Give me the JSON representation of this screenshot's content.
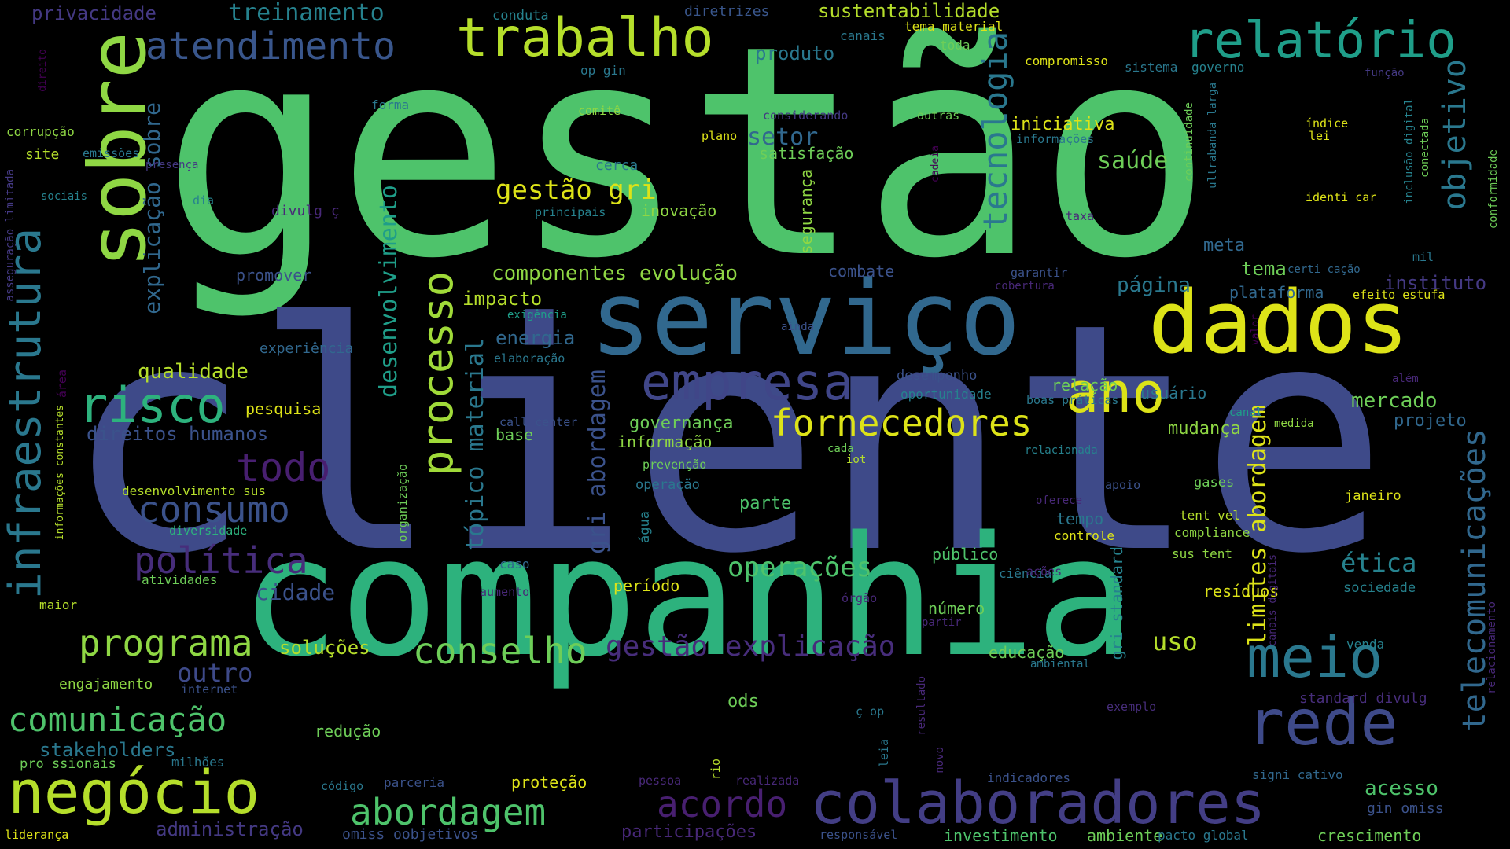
{
  "palette": [
    "#440154",
    "#482878",
    "#3e4a89",
    "#31688e",
    "#26828e",
    "#1f9e89",
    "#35b779",
    "#6ece58",
    "#b5de2b",
    "#fde725"
  ],
  "words": [
    {
      "t": "gestão",
      "c": "#4ec36b"
    },
    {
      "t": "cliente",
      "c": "#3e4a89"
    },
    {
      "t": "companhia",
      "c": "#2db27d"
    },
    {
      "t": "serviço",
      "c": "#31688e"
    },
    {
      "t": "dados",
      "c": "#dde318"
    },
    {
      "t": "sobre",
      "c": "#8fd744"
    },
    {
      "t": "trabalho",
      "c": "#b5de2b"
    },
    {
      "t": "relatório",
      "c": "#1f9e89"
    },
    {
      "t": "atendimento",
      "c": "#39568c"
    },
    {
      "t": "infraestrutura",
      "c": "#2a788e"
    },
    {
      "t": "negócio",
      "c": "#b5de2b"
    },
    {
      "t": "colaboradores",
      "c": "#433e85"
    },
    {
      "t": "rede",
      "c": "#3e4a89"
    },
    {
      "t": "meio",
      "c": "#2a788e"
    },
    {
      "t": "processo",
      "c": "#a0da39"
    },
    {
      "t": "ano",
      "c": "#dde318"
    },
    {
      "t": "empresa",
      "c": "#404688"
    },
    {
      "t": "risco",
      "c": "#2db27d"
    },
    {
      "t": "fornecedores",
      "c": "#dde318"
    },
    {
      "t": "tecnologia",
      "c": "#2a788e"
    },
    {
      "t": "telecomunicações",
      "c": "#31688e"
    },
    {
      "t": "objetivo",
      "c": "#2a788e"
    },
    {
      "t": "todo",
      "c": "#481f70"
    },
    {
      "t": "consumo",
      "c": "#3b528b"
    },
    {
      "t": "política",
      "c": "#472d7b"
    },
    {
      "t": "programa",
      "c": "#8fd744"
    },
    {
      "t": "comunicação",
      "c": "#4ec36b"
    },
    {
      "t": "conselho",
      "c": "#6ece58"
    },
    {
      "t": "gestão explicação",
      "c": "#472d7b"
    },
    {
      "t": "abordagem",
      "c": "#4ec36b"
    },
    {
      "t": "acordo",
      "c": "#481f70"
    },
    {
      "t": "operações",
      "c": "#4ec36b"
    },
    {
      "t": "tópico material",
      "c": "#2a788e"
    },
    {
      "t": "gri abordagem",
      "c": "#3b528b"
    },
    {
      "t": "limites abordagem",
      "c": "#dde318"
    },
    {
      "t": "desenvolvimento",
      "c": "#1f9e89"
    },
    {
      "t": "explicação sobre",
      "c": "#31688e"
    },
    {
      "t": "gestão gri",
      "c": "#dde318"
    },
    {
      "t": "componentes evolução",
      "c": "#8fd744"
    },
    {
      "t": "saúde",
      "c": "#6ece58"
    },
    {
      "t": "setor",
      "c": "#31688e"
    },
    {
      "t": "iniciativa",
      "c": "#dde318"
    },
    {
      "t": "qualidade",
      "c": "#b5de2b"
    },
    {
      "t": "direitos humanos",
      "c": "#3b528b"
    },
    {
      "t": "outro",
      "c": "#3e4a89"
    },
    {
      "t": "uso",
      "c": "#b5de2b"
    },
    {
      "t": "ética",
      "c": "#26828e"
    },
    {
      "t": "acesso",
      "c": "#4ec36b"
    },
    {
      "t": "privacidade",
      "c": "#443983"
    },
    {
      "t": "treinamento",
      "c": "#26828e"
    },
    {
      "t": "sustentabilidade",
      "c": "#b5de2b"
    },
    {
      "t": "produto",
      "c": "#2a788e"
    },
    {
      "t": "impacto",
      "c": "#b5de2b"
    },
    {
      "t": "energia",
      "c": "#31688e"
    },
    {
      "t": "governança",
      "c": "#6ece58"
    },
    {
      "t": "informação",
      "c": "#8fd744"
    },
    {
      "t": "parte",
      "c": "#4ec36b"
    },
    {
      "t": "cidade",
      "c": "#3b528b"
    },
    {
      "t": "soluções",
      "c": "#b5de2b"
    },
    {
      "t": "stakeholders",
      "c": "#2a788e"
    },
    {
      "t": "mercado",
      "c": "#6ece58"
    },
    {
      "t": "projeto",
      "c": "#31688e"
    },
    {
      "t": "instituto",
      "c": "#443983"
    },
    {
      "t": "mudança",
      "c": "#8fd744"
    },
    {
      "t": "usuário",
      "c": "#2a788e"
    },
    {
      "t": "relação",
      "c": "#6ece58"
    },
    {
      "t": "página",
      "c": "#2a788e"
    },
    {
      "t": "tema",
      "c": "#6ece58"
    },
    {
      "t": "meta",
      "c": "#31688e"
    },
    {
      "t": "plataforma",
      "c": "#31688e"
    },
    {
      "t": "combate",
      "c": "#3b528b"
    },
    {
      "t": "segurança",
      "c": "#8fd744"
    },
    {
      "t": "satisfação",
      "c": "#6ece58"
    },
    {
      "t": "inovação",
      "c": "#8fd744"
    },
    {
      "t": "promover",
      "c": "#3b528b"
    },
    {
      "t": "experiência",
      "c": "#31688e"
    },
    {
      "t": "pesquisa",
      "c": "#dde318"
    },
    {
      "t": "base",
      "c": "#6ece58"
    },
    {
      "t": "tempo",
      "c": "#2a788e"
    },
    {
      "t": "público",
      "c": "#4ec36b"
    },
    {
      "t": "número",
      "c": "#6ece58"
    },
    {
      "t": "educação",
      "c": "#6ece58"
    },
    {
      "t": "ods",
      "c": "#6ece58"
    },
    {
      "t": "redução",
      "c": "#6ece58"
    },
    {
      "t": "proteção",
      "c": "#dde318"
    },
    {
      "t": "período",
      "c": "#dde318"
    },
    {
      "t": "engajamento",
      "c": "#8fd744"
    },
    {
      "t": "administração",
      "c": "#443983"
    },
    {
      "t": "investimento",
      "c": "#4ec36b"
    },
    {
      "t": "ambiente",
      "c": "#6ece58"
    },
    {
      "t": "crescimento",
      "c": "#6ece58"
    },
    {
      "t": "resíduos",
      "c": "#dde318"
    },
    {
      "t": "sociedade",
      "c": "#26828e"
    },
    {
      "t": "janeiro",
      "c": "#dde318"
    },
    {
      "t": "gases",
      "c": "#6ece58"
    },
    {
      "t": "compliance",
      "c": "#8fd744"
    },
    {
      "t": "sus tent",
      "c": "#8fd744"
    },
    {
      "t": "tent vel",
      "c": "#b5de2b"
    },
    {
      "t": "controle",
      "c": "#dde318"
    },
    {
      "t": "gri standard",
      "c": "#26828e"
    },
    {
      "t": "participações",
      "c": "#482878"
    },
    {
      "t": "pro ssionais",
      "c": "#6ece58"
    },
    {
      "t": "milhões",
      "c": "#2a788e"
    },
    {
      "t": "liderança",
      "c": "#dde318"
    },
    {
      "t": "omiss oobjetivos",
      "c": "#3b528b"
    },
    {
      "t": "conduta",
      "c": "#26828e"
    },
    {
      "t": "diretrizes",
      "c": "#39568c"
    },
    {
      "t": "tema material",
      "c": "#dde318"
    },
    {
      "t": "canais",
      "c": "#2a788e"
    },
    {
      "t": "toda",
      "c": "#6ece58"
    },
    {
      "t": "compromisso",
      "c": "#dde318"
    },
    {
      "t": "sistema",
      "c": "#2a788e"
    },
    {
      "t": "governo",
      "c": "#26828e"
    },
    {
      "t": "op gin",
      "c": "#2a788e"
    },
    {
      "t": "forma",
      "c": "#2a788e"
    },
    {
      "t": "comitê",
      "c": "#8fd744"
    },
    {
      "t": "considerando",
      "c": "#443983"
    },
    {
      "t": "outras",
      "c": "#6ece58"
    },
    {
      "t": "plano",
      "c": "#dde318"
    },
    {
      "t": "informações",
      "c": "#2a788e"
    },
    {
      "t": "corrupção",
      "c": "#8fd744"
    },
    {
      "t": "site",
      "c": "#b5de2b"
    },
    {
      "t": "emissões",
      "c": "#2a788e"
    },
    {
      "t": "presença",
      "c": "#443983"
    },
    {
      "t": "sociais",
      "c": "#26828e"
    },
    {
      "t": "dia",
      "c": "#26828e"
    },
    {
      "t": "divulg ç",
      "c": "#482878"
    },
    {
      "t": "cerca",
      "c": "#2a788e"
    },
    {
      "t": "principais",
      "c": "#26828e"
    },
    {
      "t": "exigência",
      "c": "#1f9e89"
    },
    {
      "t": "elaboração",
      "c": "#2a788e"
    },
    {
      "t": "ainda",
      "c": "#3b528b"
    },
    {
      "t": "desempenho",
      "c": "#3b528b"
    },
    {
      "t": "oportunidade",
      "c": "#26828e"
    },
    {
      "t": "boas práticas",
      "c": "#2a788e"
    },
    {
      "t": "canal",
      "c": "#1f9e89"
    },
    {
      "t": "medida",
      "c": "#8fd744"
    },
    {
      "t": "além",
      "c": "#482878"
    },
    {
      "t": "call center",
      "c": "#3b528b"
    },
    {
      "t": "cada",
      "c": "#6ece58"
    },
    {
      "t": "iot",
      "c": "#b5de2b"
    },
    {
      "t": "relacionada",
      "c": "#26828e"
    },
    {
      "t": "apoio",
      "c": "#3b528b"
    },
    {
      "t": "oferece",
      "c": "#482878"
    },
    {
      "t": "prevenção",
      "c": "#6ece58"
    },
    {
      "t": "operação",
      "c": "#2a788e"
    },
    {
      "t": "desenvolvimento sus",
      "c": "#b5de2b"
    },
    {
      "t": "diversidade",
      "c": "#2db27d"
    },
    {
      "t": "atividades",
      "c": "#6ece58"
    },
    {
      "t": "maior",
      "c": "#b5de2b"
    },
    {
      "t": "internet",
      "c": "#3b528b"
    },
    {
      "t": "caso",
      "c": "#31688e"
    },
    {
      "t": "aumento",
      "c": "#482878"
    },
    {
      "t": "órgão",
      "c": "#482878"
    },
    {
      "t": "partir",
      "c": "#482878"
    },
    {
      "t": "ciência",
      "c": "#2a788e"
    },
    {
      "t": "ações",
      "c": "#482878"
    },
    {
      "t": "venda",
      "c": "#26828e"
    },
    {
      "t": "ambiental",
      "c": "#2a788e"
    },
    {
      "t": "standard divulg",
      "c": "#472d7b"
    },
    {
      "t": "gin omiss",
      "c": "#3b528b"
    },
    {
      "t": "exemplo",
      "c": "#472d7b"
    },
    {
      "t": "ç op",
      "c": "#2a788e"
    },
    {
      "t": "código",
      "c": "#2a788e"
    },
    {
      "t": "parceria",
      "c": "#3b528b"
    },
    {
      "t": "pessoa",
      "c": "#482878"
    },
    {
      "t": "realizada",
      "c": "#482878"
    },
    {
      "t": "responsável",
      "c": "#3b528b"
    },
    {
      "t": "indicadores",
      "c": "#3b528b"
    },
    {
      "t": "pacto global",
      "c": "#2a788e"
    },
    {
      "t": "signi cativo",
      "c": "#31688e"
    },
    {
      "t": "certi cação",
      "c": "#31688e"
    },
    {
      "t": "efeito estufa",
      "c": "#dde318"
    },
    {
      "t": "cobertura",
      "c": "#482878"
    },
    {
      "t": "garantir",
      "c": "#3b528b"
    },
    {
      "t": "mil",
      "c": "#2a788e"
    },
    {
      "t": "taxa",
      "c": "#482878"
    },
    {
      "t": "identi car",
      "c": "#dde318"
    },
    {
      "t": "lei",
      "c": "#dde318"
    },
    {
      "t": "índice",
      "c": "#dde318"
    },
    {
      "t": "função",
      "c": "#443983"
    },
    {
      "t": "direito",
      "c": "#440154"
    },
    {
      "t": "asseguração limitada",
      "c": "#443983"
    },
    {
      "t": "informações constantes",
      "c": "#b5de2b"
    },
    {
      "t": "área",
      "c": "#440154"
    },
    {
      "t": "organização",
      "c": "#6ece58"
    },
    {
      "t": "água",
      "c": "#26828e"
    },
    {
      "t": "cadeia",
      "c": "#440154"
    },
    {
      "t": "continuidade",
      "c": "#6ece58"
    },
    {
      "t": "ultrabanda larga",
      "c": "#2a788e"
    },
    {
      "t": "inclusão digital",
      "c": "#26828e"
    },
    {
      "t": "conectada",
      "c": "#6ece58"
    },
    {
      "t": "conformidade",
      "c": "#6ece58"
    },
    {
      "t": "canais digitais",
      "c": "#482878"
    },
    {
      "t": "relacionamento",
      "c": "#482878"
    },
    {
      "t": "valor",
      "c": "#440154"
    },
    {
      "t": "resultado",
      "c": "#482878"
    },
    {
      "t": "leia",
      "c": "#2a788e"
    },
    {
      "t": "novo",
      "c": "#482878"
    },
    {
      "t": "rio",
      "c": "#b5de2b"
    }
  ]
}
